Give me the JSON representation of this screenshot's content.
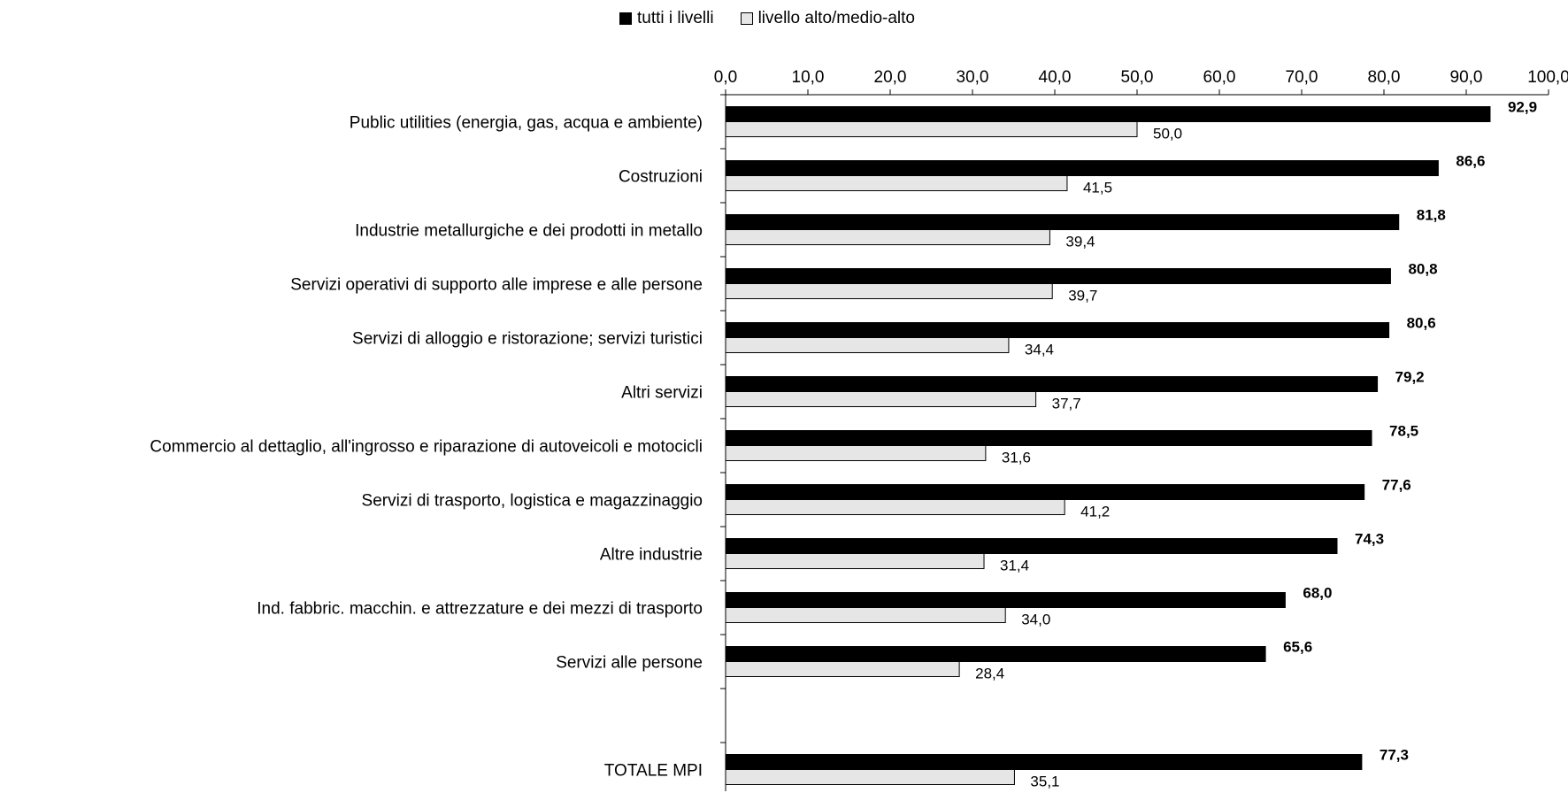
{
  "chart_data": {
    "type": "bar",
    "orientation": "horizontal",
    "categories": [
      "Public utilities (energia, gas, acqua e ambiente)",
      "Costruzioni",
      "Industrie metallurgiche e dei prodotti in metallo",
      "Servizi operativi di supporto alle imprese e alle persone",
      "Servizi di alloggio e ristorazione; servizi turistici",
      "Altri servizi",
      "Commercio al dettaglio, all'ingrosso e riparazione di autoveicoli e motocicli",
      "Servizi di trasporto, logistica e magazzinaggio",
      "Altre industrie",
      "Ind. fabbric. macchin. e attrezzature e dei mezzi di trasporto",
      "Servizi alle persone",
      "",
      "TOTALE MPI"
    ],
    "series": [
      {
        "name": "tutti i livelli",
        "color": "#000000",
        "values": [
          92.9,
          86.6,
          81.8,
          80.8,
          80.6,
          79.2,
          78.5,
          77.6,
          74.3,
          68.0,
          65.6,
          null,
          77.3
        ],
        "labels": [
          "92,9",
          "86,6",
          "81,8",
          "80,8",
          "80,6",
          "79,2",
          "78,5",
          "77,6",
          "74,3",
          "68,0",
          "65,6",
          "",
          "77,3"
        ]
      },
      {
        "name": "livello alto/medio-alto",
        "color": "#e6e6e6",
        "values": [
          50.0,
          41.5,
          39.4,
          39.7,
          34.4,
          37.7,
          31.6,
          41.2,
          31.4,
          34.0,
          28.4,
          null,
          35.1
        ],
        "labels": [
          "50,0",
          "41,5",
          "39,4",
          "39,7",
          "34,4",
          "37,7",
          "31,6",
          "41,2",
          "31,4",
          "34,0",
          "28,4",
          "",
          "35,1"
        ]
      }
    ],
    "xlim": [
      0,
      100
    ],
    "x_ticks": [
      "0,0",
      "10,0",
      "20,0",
      "30,0",
      "40,0",
      "50,0",
      "60,0",
      "70,0",
      "80,0",
      "90,0",
      "100,0"
    ],
    "axis_position": "top",
    "legend": {
      "position": "top-center",
      "items": [
        "tutti i livelli",
        "livello alto/medio-alto"
      ]
    },
    "grid": false
  }
}
